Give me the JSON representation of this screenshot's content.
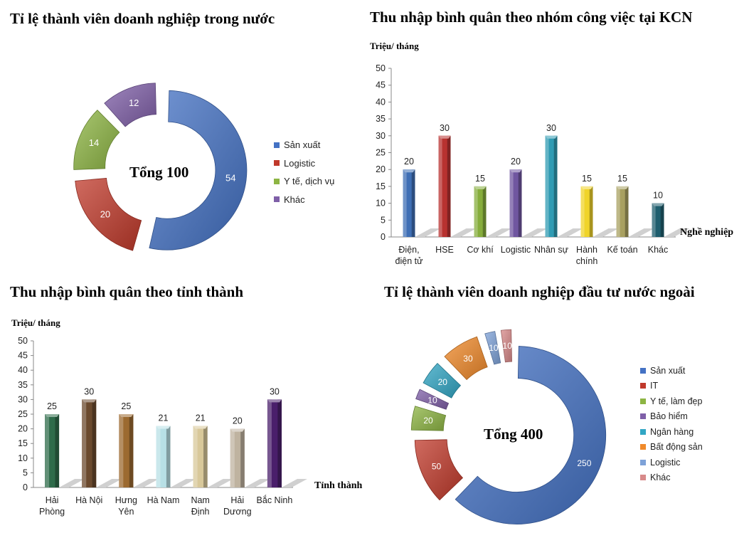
{
  "chart_data": [
    {
      "type": "pie",
      "title": "Tỉ lệ thành viên doanh nghiệp trong nước",
      "center_label": "Tổng 100",
      "slices": [
        {
          "label": "Sản xuất",
          "value": 54,
          "color": "#4472c4"
        },
        {
          "label": "Logistic",
          "value": 20,
          "color": "#c0392b"
        },
        {
          "label": "Y tế, dịch vụ",
          "value": 14,
          "color": "#8db543"
        },
        {
          "label": "Khác",
          "value": 12,
          "color": "#7f5fa8"
        }
      ]
    },
    {
      "type": "bar",
      "title": "Thu nhập bình quân theo nhóm công việc tại KCN",
      "ylabel": "Triệu/ tháng",
      "xlabel": "Nghề nghiệp",
      "ylim": [
        0,
        50
      ],
      "yticks": [
        "0",
        "5",
        "10",
        "15",
        "20",
        "25",
        "30",
        "35",
        "40",
        "45",
        "50"
      ],
      "categories": [
        [
          "Điện,",
          "điện tử"
        ],
        [
          "HSE"
        ],
        [
          "Cơ khí"
        ],
        [
          "Logistic"
        ],
        [
          "Nhân sự"
        ],
        [
          "Hành",
          "chính"
        ],
        [
          "Kế toán"
        ],
        [
          "Khác"
        ]
      ],
      "values": [
        20,
        30,
        15,
        20,
        30,
        15,
        15,
        10
      ],
      "data_labels": [
        "20",
        "30",
        "15",
        "20",
        "30",
        "15",
        "15",
        "10"
      ],
      "colors": [
        "#3f6fb5",
        "#b83230",
        "#86ad3c",
        "#7056a0",
        "#2f9bb3",
        "#f0d42a",
        "#a8a060",
        "#1f5e6e"
      ]
    },
    {
      "type": "bar",
      "title": "Thu nhập bình quân theo tỉnh thành",
      "ylabel": "Triệu/ tháng",
      "xlabel": "Tỉnh thành",
      "ylim": [
        0,
        50
      ],
      "yticks": [
        "0",
        "5",
        "10",
        "15",
        "20",
        "25",
        "30",
        "35",
        "40",
        "45",
        "50"
      ],
      "categories": [
        [
          "Hải",
          "Phòng"
        ],
        [
          "Hà Nội"
        ],
        [
          "Hưng",
          "Yên"
        ],
        [
          "Hà Nam"
        ],
        [
          "Nam",
          "Định"
        ],
        [
          "Hải",
          "Dương"
        ],
        [
          "Bắc Ninh"
        ]
      ],
      "values": [
        25,
        30,
        25,
        21,
        21,
        20,
        30
      ],
      "data_labels": [
        "25",
        "30",
        "25",
        "21",
        "21",
        "20",
        "30"
      ],
      "colors": [
        "#2e6b4a",
        "#6b4a2e",
        "#9c6a30",
        "#b8e0e6",
        "#d8c89a",
        "#bfb3a0",
        "#4a1f6b"
      ]
    },
    {
      "type": "pie",
      "title": "Tỉ lệ thành viên doanh nghiệp đầu tư nước ngoài",
      "center_label": "Tổng 400",
      "slices": [
        {
          "label": "Sản xuất",
          "value": 250,
          "color": "#4472c4"
        },
        {
          "label": "IT",
          "value": 50,
          "color": "#c0392b"
        },
        {
          "label": "Y tế, làm đẹp",
          "value": 20,
          "color": "#8db543"
        },
        {
          "label": "Bảo hiểm",
          "value": 10,
          "color": "#7f5fa8"
        },
        {
          "label": "Ngân hàng",
          "value": 20,
          "color": "#31a6c4"
        },
        {
          "label": "Bất động sản",
          "value": 30,
          "color": "#f08a2a"
        },
        {
          "label": "Logistic",
          "value": 10,
          "color": "#7ea2d8"
        },
        {
          "label": "Khác",
          "value": 10,
          "color": "#d88a8a"
        }
      ]
    }
  ]
}
